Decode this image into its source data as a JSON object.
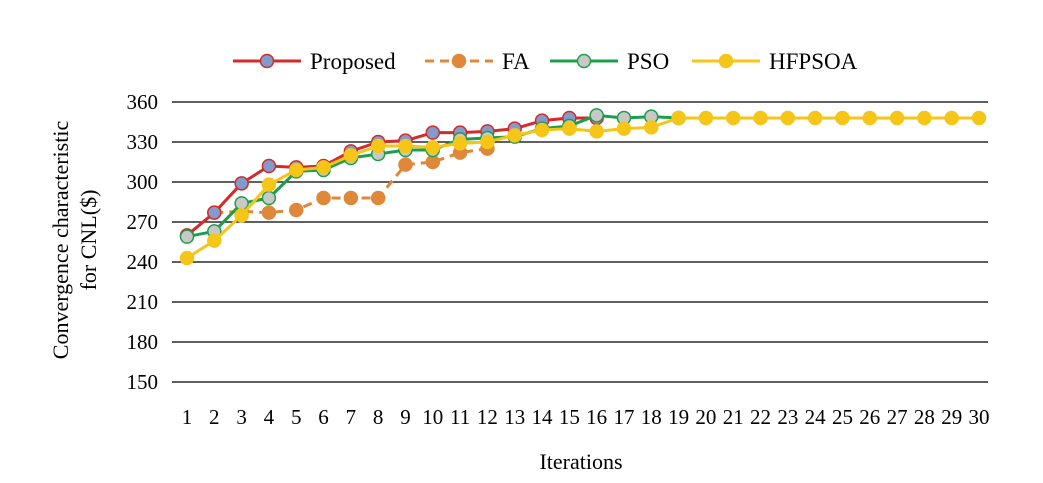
{
  "chart_data": {
    "type": "line",
    "title": "",
    "xlabel": "Iterations",
    "ylabel_lines": [
      "Convergence characteristic",
      "for CNL($)"
    ],
    "ylim": [
      150,
      360
    ],
    "yticks": [
      150,
      180,
      210,
      240,
      270,
      300,
      330,
      360
    ],
    "x": [
      1,
      2,
      3,
      4,
      5,
      6,
      7,
      8,
      9,
      10,
      11,
      12,
      13,
      14,
      15,
      16,
      17,
      18,
      19,
      20,
      21,
      22,
      23,
      24,
      25,
      26,
      27,
      28,
      29,
      30
    ],
    "grid": "horizontal",
    "legend_position": "top",
    "series": [
      {
        "name": "Proposed",
        "line_color": "#d42a2a",
        "marker_color": "#7f9ccc",
        "dash": "solid",
        "values": [
          260,
          277,
          299,
          312,
          311,
          312,
          323,
          330,
          331,
          337,
          337,
          338,
          340,
          346,
          348,
          348,
          null,
          null,
          null,
          null,
          null,
          null,
          null,
          null,
          null,
          null,
          null,
          null,
          null,
          null
        ]
      },
      {
        "name": "FA",
        "line_color": "#e0883a",
        "marker_color": "#e0883a",
        "dash": "dashed",
        "values": [
          null,
          277,
          278,
          277,
          279,
          288,
          288,
          288,
          313,
          315,
          322,
          325,
          null,
          null,
          null,
          null,
          null,
          null,
          null,
          null,
          null,
          null,
          null,
          null,
          null,
          null,
          null,
          null,
          null,
          null
        ]
      },
      {
        "name": "PSO",
        "line_color": "#1d9e4a",
        "marker_color": "#c8c8c8",
        "dash": "solid",
        "values": [
          259,
          263,
          284,
          288,
          308,
          309,
          318,
          321,
          324,
          324,
          332,
          333,
          334,
          340,
          342,
          350,
          348,
          349,
          348,
          null,
          null,
          null,
          null,
          null,
          null,
          null,
          null,
          null,
          null,
          null
        ]
      },
      {
        "name": "HFPSOA",
        "line_color": "#f5c518",
        "marker_color": "#f5c518",
        "dash": "solid",
        "values": [
          243,
          256,
          275,
          298,
          309,
          311,
          320,
          327,
          327,
          326,
          329,
          330,
          335,
          339,
          340,
          338,
          340,
          341,
          348,
          348,
          348,
          348,
          348,
          348,
          348,
          348,
          348,
          348,
          348,
          348
        ]
      }
    ]
  }
}
